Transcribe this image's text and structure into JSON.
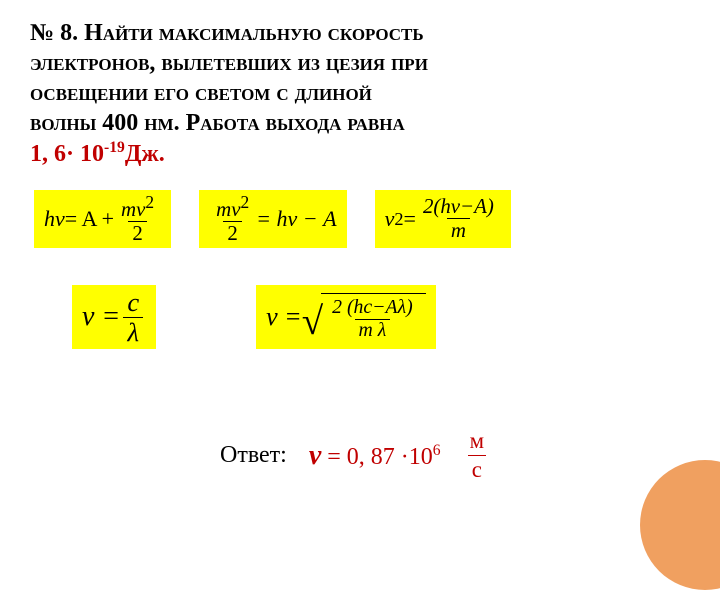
{
  "title": {
    "line1_prefix": "№ 8. ",
    "line1_word": "Найти",
    "line1_rest": "   максимальную   скорость",
    "line2": "электронов,  вылетевших   из   цезия   при",
    "line3": "освещении   его   светом  с   длиной",
    "line4a": "волны  400 нм.",
    "line4b": " Работа   выхода   равна",
    "line5_val": "1, 6· 10",
    "line5_exp": "-19",
    "line5_unit": "Дж."
  },
  "formulas": {
    "f1": {
      "lhs": "hν",
      "eq": " = A + ",
      "num": "mv",
      "num_exp": "2",
      "den": "2"
    },
    "f2": {
      "num": "mv",
      "num_exp": "2",
      "den": "2",
      "mid": " = hν − A"
    },
    "f3": {
      "lhs": "v",
      "lhs_exp": "2",
      "eq": "  =  ",
      "num": "2(hν−A)",
      "den": "m"
    },
    "f4": {
      "lhs": "ν = ",
      "num": "c",
      "den": "λ"
    },
    "f5": {
      "lhs": "v = ",
      "num": "2 (hc−Aλ)",
      "den": "m λ"
    }
  },
  "answer": {
    "label": "Ответ:",
    "v": "v",
    "text": " = 0, 87 ·10",
    "exp": "6",
    "unit_num": "м",
    "unit_den": "с"
  },
  "style": {
    "highlight": "#ffff00",
    "red": "#c00000",
    "circle": "#f0a060",
    "bg": "#ffffff"
  }
}
